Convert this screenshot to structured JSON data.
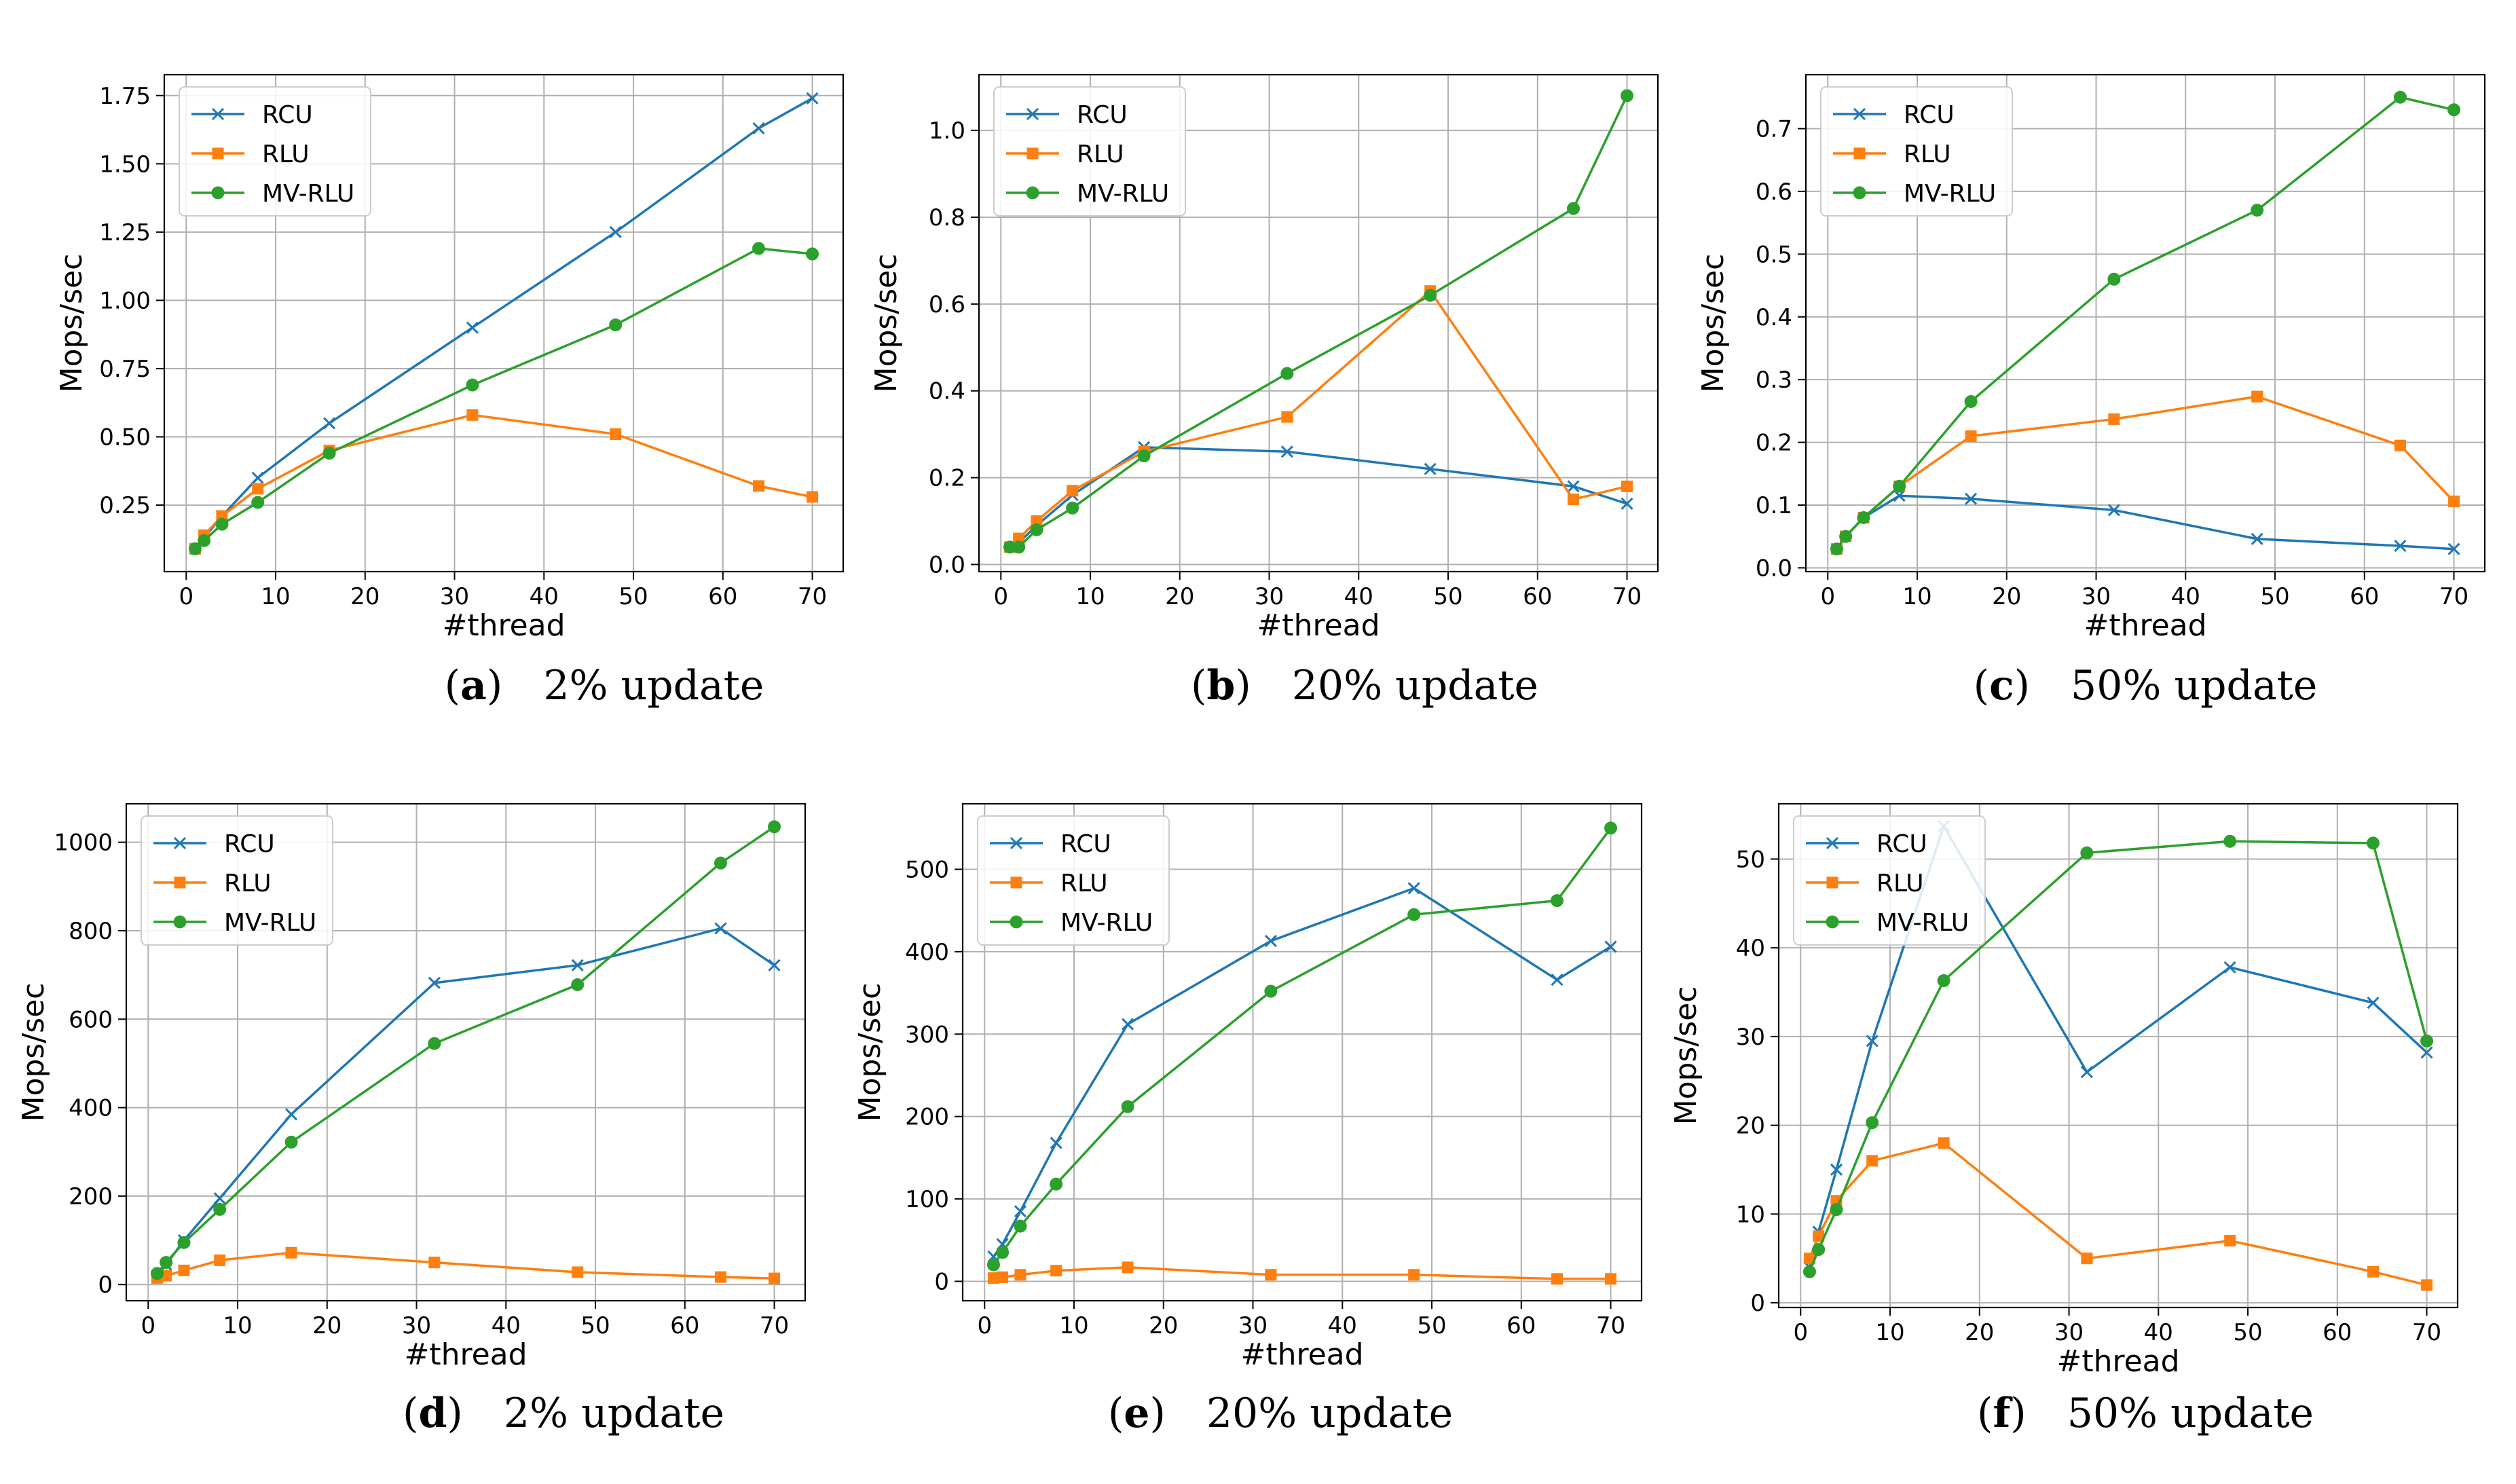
{
  "colors": {
    "rcu": "#1f77b4",
    "rlu": "#ff7f0e",
    "mvrlu": "#2ca02c",
    "grid": "#b0b0b0",
    "axis": "#000000"
  },
  "chart_data": [
    {
      "type": "line",
      "caption_label": "a",
      "caption_text": "2% update",
      "xlabel": "#thread",
      "ylabel": "Mops/sec",
      "xlim": [
        -2.45,
        73.45
      ],
      "ylim": [
        0.0065,
        1.8265
      ],
      "xticks": [
        0,
        10,
        20,
        30,
        40,
        50,
        60,
        70
      ],
      "xtick_labels": [
        "0",
        "10",
        "20",
        "30",
        "40",
        "50",
        "60",
        "70"
      ],
      "yticks": [
        0.25,
        0.5,
        0.75,
        1.0,
        1.25,
        1.5,
        1.75
      ],
      "ytick_labels": [
        "0.25",
        "0.50",
        "0.75",
        "1.00",
        "1.25",
        "1.50",
        "1.75"
      ],
      "legend_location": "upper left",
      "grid": true,
      "x": [
        1,
        2,
        4,
        8,
        16,
        32,
        48,
        64,
        70
      ],
      "series": [
        {
          "name": "RCU",
          "marker": "x",
          "values": [
            0.09,
            0.13,
            0.21,
            0.35,
            0.55,
            0.9,
            1.25,
            1.63,
            1.74
          ]
        },
        {
          "name": "RLU",
          "marker": "square",
          "values": [
            0.09,
            0.14,
            0.21,
            0.31,
            0.45,
            0.58,
            0.51,
            0.32,
            0.28
          ]
        },
        {
          "name": "MV-RLU",
          "marker": "circle",
          "values": [
            0.09,
            0.12,
            0.18,
            0.26,
            0.44,
            0.69,
            0.91,
            1.19,
            1.17
          ]
        }
      ]
    },
    {
      "type": "line",
      "caption_label": "b",
      "caption_text": "20% update",
      "xlabel": "#thread",
      "ylabel": "Mops/sec",
      "xlim": [
        -2.45,
        73.45
      ],
      "ylim": [
        -0.0164,
        1.1284
      ],
      "xticks": [
        0,
        10,
        20,
        30,
        40,
        50,
        60,
        70
      ],
      "xtick_labels": [
        "0",
        "10",
        "20",
        "30",
        "40",
        "50",
        "60",
        "70"
      ],
      "yticks": [
        0.0,
        0.2,
        0.4,
        0.6,
        0.8,
        1.0
      ],
      "ytick_labels": [
        "0.0",
        "0.2",
        "0.4",
        "0.6",
        "0.8",
        "1.0"
      ],
      "legend_location": "upper left",
      "grid": true,
      "x": [
        1,
        2,
        4,
        8,
        16,
        32,
        48,
        64,
        70
      ],
      "series": [
        {
          "name": "RCU",
          "marker": "x",
          "values": [
            0.04,
            0.05,
            0.09,
            0.16,
            0.27,
            0.26,
            0.22,
            0.18,
            0.14
          ]
        },
        {
          "name": "RLU",
          "marker": "square",
          "values": [
            0.04,
            0.06,
            0.1,
            0.17,
            0.26,
            0.34,
            0.63,
            0.15,
            0.18
          ]
        },
        {
          "name": "MV-RLU",
          "marker": "circle",
          "values": [
            0.04,
            0.04,
            0.08,
            0.13,
            0.25,
            0.44,
            0.62,
            0.82,
            1.08
          ]
        }
      ]
    },
    {
      "type": "line",
      "caption_label": "c",
      "caption_text": "50% update",
      "xlabel": "#thread",
      "ylabel": "Mops/sec",
      "xlim": [
        -2.45,
        73.45
      ],
      "ylim": [
        -0.006,
        0.786
      ],
      "xticks": [
        0,
        10,
        20,
        30,
        40,
        50,
        60,
        70
      ],
      "xtick_labels": [
        "0",
        "10",
        "20",
        "30",
        "40",
        "50",
        "60",
        "70"
      ],
      "yticks": [
        0.0,
        0.1,
        0.2,
        0.3,
        0.4,
        0.5,
        0.6,
        0.7
      ],
      "ytick_labels": [
        "0.0",
        "0.1",
        "0.2",
        "0.3",
        "0.4",
        "0.5",
        "0.6",
        "0.7"
      ],
      "legend_location": "upper left",
      "grid": true,
      "x": [
        1,
        2,
        4,
        8,
        16,
        32,
        48,
        64,
        70
      ],
      "series": [
        {
          "name": "RCU",
          "marker": "x",
          "values": [
            0.03,
            0.05,
            0.08,
            0.115,
            0.11,
            0.092,
            0.046,
            0.035,
            0.03
          ]
        },
        {
          "name": "RLU",
          "marker": "square",
          "values": [
            0.03,
            0.05,
            0.08,
            0.13,
            0.21,
            0.237,
            0.273,
            0.195,
            0.106
          ]
        },
        {
          "name": "MV-RLU",
          "marker": "circle",
          "values": [
            0.03,
            0.05,
            0.08,
            0.13,
            0.265,
            0.46,
            0.57,
            0.75,
            0.73
          ]
        }
      ]
    },
    {
      "type": "line",
      "caption_label": "d",
      "caption_text": "2% update",
      "xlabel": "#thread",
      "ylabel": "Mops/sec",
      "xlim": [
        -2.45,
        73.45
      ],
      "ylim": [
        -36.5,
        1087
      ],
      "xticks": [
        0,
        10,
        20,
        30,
        40,
        50,
        60,
        70
      ],
      "xtick_labels": [
        "0",
        "10",
        "20",
        "30",
        "40",
        "50",
        "60",
        "70"
      ],
      "yticks": [
        0,
        200,
        400,
        600,
        800,
        1000
      ],
      "ytick_labels": [
        "0",
        "200",
        "400",
        "600",
        "800",
        "1000"
      ],
      "legend_location": "upper left",
      "grid": true,
      "x": [
        1,
        2,
        4,
        8,
        16,
        32,
        48,
        64,
        70
      ],
      "series": [
        {
          "name": "RCU",
          "marker": "x",
          "values": [
            20,
            45,
            100,
            195,
            385,
            682,
            722,
            805,
            722
          ]
        },
        {
          "name": "RLU",
          "marker": "square",
          "values": [
            15,
            20,
            32,
            55,
            72,
            50,
            28,
            17,
            14
          ]
        },
        {
          "name": "MV-RLU",
          "marker": "circle",
          "values": [
            25,
            50,
            95,
            170,
            322,
            545,
            678,
            953,
            1035
          ]
        }
      ]
    },
    {
      "type": "line",
      "caption_label": "e",
      "caption_text": "20% update",
      "xlabel": "#thread",
      "ylabel": "Mops/sec",
      "xlim": [
        -2.45,
        73.45
      ],
      "ylim": [
        -23.5,
        579.5
      ],
      "xticks": [
        0,
        10,
        20,
        30,
        40,
        50,
        60,
        70
      ],
      "xtick_labels": [
        "0",
        "10",
        "20",
        "30",
        "40",
        "50",
        "60",
        "70"
      ],
      "yticks": [
        0,
        100,
        200,
        300,
        400,
        500
      ],
      "ytick_labels": [
        "0",
        "100",
        "200",
        "300",
        "400",
        "500"
      ],
      "legend_location": "upper left",
      "grid": true,
      "x": [
        1,
        2,
        4,
        8,
        16,
        32,
        48,
        64,
        70
      ],
      "series": [
        {
          "name": "RCU",
          "marker": "x",
          "values": [
            30,
            45,
            85,
            168,
            312,
            413,
            477,
            366,
            406
          ]
        },
        {
          "name": "RLU",
          "marker": "square",
          "values": [
            4,
            5,
            8,
            13,
            17,
            8,
            8,
            3,
            3
          ]
        },
        {
          "name": "MV-RLU",
          "marker": "circle",
          "values": [
            20,
            35,
            67,
            118,
            212,
            352,
            445,
            462,
            550
          ]
        }
      ]
    },
    {
      "type": "line",
      "caption_label": "f",
      "caption_text": "50% update",
      "xlabel": "#thread",
      "ylabel": "Mops/sec",
      "xlim": [
        -2.45,
        73.45
      ],
      "ylim": [
        -0.53,
        56.23
      ],
      "xticks": [
        0,
        10,
        20,
        30,
        40,
        50,
        60,
        70
      ],
      "xtick_labels": [
        "0",
        "10",
        "20",
        "30",
        "40",
        "50",
        "60",
        "70"
      ],
      "yticks": [
        0,
        10,
        20,
        30,
        40,
        50
      ],
      "ytick_labels": [
        "0",
        "10",
        "20",
        "30",
        "40",
        "50"
      ],
      "legend_location": "upper left",
      "grid": true,
      "x": [
        1,
        2,
        4,
        8,
        16,
        32,
        48,
        64,
        70
      ],
      "series": [
        {
          "name": "RCU",
          "marker": "x",
          "values": [
            4,
            8,
            15,
            29.5,
            53.7,
            26,
            37.8,
            33.8,
            28.2
          ]
        },
        {
          "name": "RLU",
          "marker": "square",
          "values": [
            5,
            7.5,
            11.5,
            16,
            18,
            5,
            7,
            3.5,
            2
          ]
        },
        {
          "name": "MV-RLU",
          "marker": "circle",
          "values": [
            3.5,
            6,
            10.5,
            20.3,
            36.3,
            50.7,
            52,
            51.8,
            29.5
          ]
        }
      ]
    }
  ]
}
